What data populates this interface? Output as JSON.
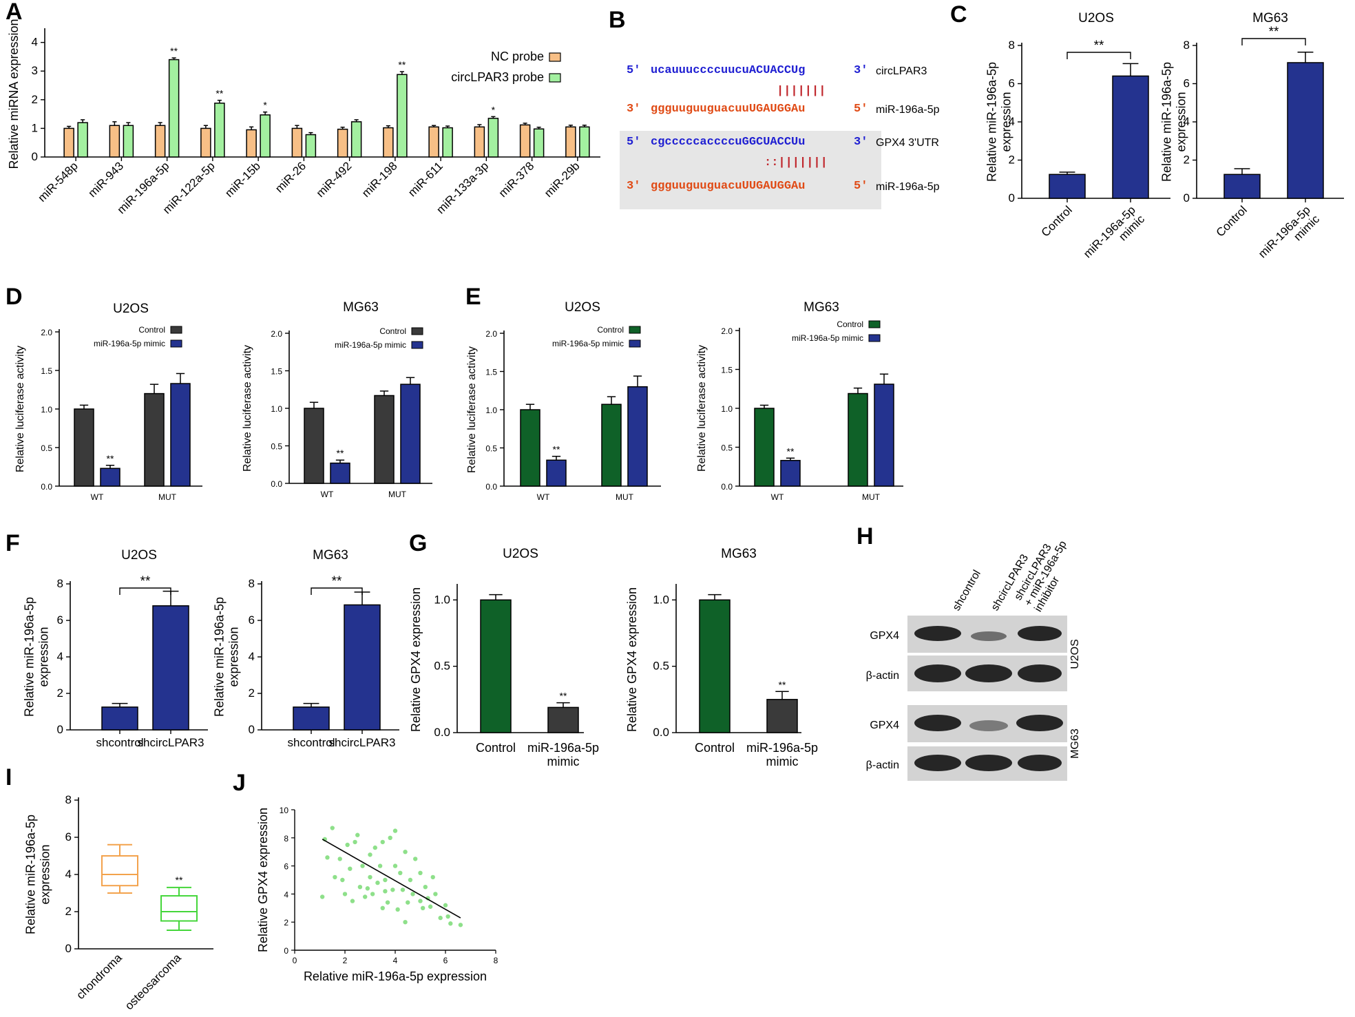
{
  "colors": {
    "orange": "#f7bf86",
    "green_light": "#a3f0a0",
    "dark_grey": "#3a3a3a",
    "navy": "#24338f",
    "dark_green": "#0f6128",
    "seq_blue": "#1f1fd2",
    "seq_red": "#e04b16",
    "pair_red": "#c0272d",
    "box_orange": "#f3a24c",
    "box_green": "#44d63a",
    "scatter_green": "#8ee08a"
  },
  "panels": {
    "A": {
      "label": "A",
      "ylabel": "Relative miRNA expression",
      "legend": [
        "NC probe",
        "circLPAR3 probe"
      ]
    },
    "B": {
      "label": "B",
      "rows": [
        {
          "p5": "5'",
          "seq": "ucauuuccccuucuACUACCUg",
          "p3": "3'",
          "name": "circLPAR3",
          "color": "blue"
        },
        {
          "p5": "3'",
          "seq": "ggguuguuguacuuUGAUGGAu",
          "p3": "5'",
          "name": "miR-196a-5p",
          "color": "red"
        },
        {
          "p5": "5'",
          "seq": "cgcccccaccccuGGCUACCUu",
          "p3": "3'",
          "name": "GPX4 3'UTR",
          "color": "blue"
        },
        {
          "p5": "3'",
          "seq": "ggguuguuguacuUUGAUGGAu",
          "p3": "5'",
          "name": "miR-196a-5p",
          "color": "red"
        }
      ],
      "pair_marks": [
        "|||||||",
        "::|||||||"
      ]
    },
    "C": {
      "label": "C",
      "ylabel": "Relative miR-196a-5p\nexpression",
      "sig": "**"
    },
    "D": {
      "label": "D",
      "ylabel": "Relative luciferase activity"
    },
    "E": {
      "label": "E",
      "ylabel": "Relative luciferase activity"
    },
    "F": {
      "label": "F",
      "ylabel": "Relative miR-196a-5p\nexpression",
      "sig": "**"
    },
    "G": {
      "label": "G",
      "ylabel": "Relative GPX4 expression"
    },
    "H": {
      "label": "H",
      "lanes": [
        "shcontrol",
        "shcircLPAR3",
        "shcircLPAR3\n+ miR-196a-5p\ninhibitor"
      ],
      "rows": [
        "GPX4",
        "β-actin",
        "GPX4",
        "β-actin"
      ],
      "cells": [
        "U2OS",
        "MG63"
      ]
    },
    "I": {
      "label": "I",
      "ylabel": "Relative miR-196a-5p\nexpression"
    },
    "J": {
      "label": "J",
      "xlabel": "Relative miR-196a-5p expression",
      "ylabel": "Relative GPX4 expression"
    }
  },
  "chart_data": [
    {
      "id": "A",
      "type": "bar",
      "categories": [
        "miR-548p",
        "miR-943",
        "miR-196a-5p",
        "miR-122a-5p",
        "miR-15b",
        "miR-26",
        "miR-492",
        "miR-198",
        "miR-611",
        "miR-133a-3p",
        "miR-378",
        "miR-29b"
      ],
      "series": [
        {
          "name": "NC probe",
          "values": [
            1.0,
            1.1,
            1.1,
            1.0,
            0.95,
            1.0,
            0.97,
            1.02,
            1.05,
            1.05,
            1.12,
            1.05
          ],
          "errors": [
            0.07,
            0.13,
            0.1,
            0.1,
            0.1,
            0.1,
            0.07,
            0.07,
            0.05,
            0.08,
            0.06,
            0.06
          ]
        },
        {
          "name": "circLPAR3 probe",
          "values": [
            1.2,
            1.1,
            3.4,
            1.88,
            1.47,
            0.78,
            1.23,
            2.88,
            1.02,
            1.35,
            0.98,
            1.05
          ],
          "errors": [
            0.1,
            0.1,
            0.06,
            0.1,
            0.1,
            0.07,
            0.07,
            0.1,
            0.06,
            0.06,
            0.06,
            0.06
          ]
        }
      ],
      "significance": [
        "",
        "",
        "**",
        "**",
        "*",
        "",
        "",
        "**",
        "",
        "*",
        "",
        ""
      ],
      "yticks": [
        0,
        1,
        2,
        3,
        4
      ],
      "ylim": [
        0,
        4.4
      ],
      "ylabel": "Relative miRNA expression"
    },
    {
      "id": "C1",
      "type": "bar",
      "title": "U2OS",
      "categories": [
        "Control",
        "miR-196a-5p\nmimic"
      ],
      "values": [
        1.25,
        6.4
      ],
      "errors": [
        0.12,
        0.65
      ],
      "yticks": [
        0,
        2,
        4,
        6,
        8
      ],
      "ylim": [
        0,
        8
      ]
    },
    {
      "id": "C2",
      "type": "bar",
      "title": "MG63",
      "categories": [
        "Control",
        "miR-196a-5p\nmimic"
      ],
      "values": [
        1.25,
        7.1
      ],
      "errors": [
        0.3,
        0.55
      ],
      "yticks": [
        0,
        2,
        4,
        6,
        8
      ],
      "ylim": [
        0,
        8
      ]
    },
    {
      "id": "D1",
      "type": "bar",
      "title": "U2OS",
      "categories": [
        "WT",
        "MUT"
      ],
      "series": [
        {
          "name": "Control",
          "values": [
            1.0,
            1.2
          ],
          "errors": [
            0.05,
            0.12
          ]
        },
        {
          "name": "miR-196a-5p mimic",
          "values": [
            0.23,
            1.33
          ],
          "errors": [
            0.04,
            0.13
          ]
        }
      ],
      "significance": [
        "**",
        ""
      ],
      "yticks": [
        0.0,
        0.5,
        1.0,
        1.5,
        2.0
      ],
      "ylim": [
        0,
        2.0
      ]
    },
    {
      "id": "D2",
      "type": "bar",
      "title": "MG63",
      "categories": [
        "WT",
        "MUT"
      ],
      "series": [
        {
          "name": "Control",
          "values": [
            1.0,
            1.17
          ],
          "errors": [
            0.08,
            0.06
          ]
        },
        {
          "name": "miR-196a-5p mimic",
          "values": [
            0.27,
            1.32
          ],
          "errors": [
            0.04,
            0.09
          ]
        }
      ],
      "significance": [
        "**",
        ""
      ],
      "yticks": [
        0.0,
        0.5,
        1.0,
        1.5,
        2.0
      ],
      "ylim": [
        0,
        2.0
      ]
    },
    {
      "id": "E1",
      "type": "bar",
      "title": "U2OS",
      "categories": [
        "WT",
        "MUT"
      ],
      "series": [
        {
          "name": "Control",
          "values": [
            1.0,
            1.07
          ],
          "errors": [
            0.07,
            0.1
          ]
        },
        {
          "name": "miR-196a-5p mimic",
          "values": [
            0.34,
            1.3
          ],
          "errors": [
            0.05,
            0.14
          ]
        }
      ],
      "significance": [
        "**",
        ""
      ],
      "yticks": [
        0.0,
        0.5,
        1.0,
        1.5,
        2.0
      ],
      "ylim": [
        0,
        2.0
      ]
    },
    {
      "id": "E2",
      "type": "bar",
      "title": "MG63",
      "categories": [
        "WT",
        "MUT"
      ],
      "series": [
        {
          "name": "Control",
          "values": [
            1.0,
            1.19
          ],
          "errors": [
            0.04,
            0.07
          ]
        },
        {
          "name": "miR-196a-5p mimic",
          "values": [
            0.33,
            1.31
          ],
          "errors": [
            0.03,
            0.13
          ]
        }
      ],
      "significance": [
        "**",
        ""
      ],
      "yticks": [
        0.0,
        0.5,
        1.0,
        1.5,
        2.0
      ],
      "ylim": [
        0,
        2.0
      ]
    },
    {
      "id": "F1",
      "type": "bar",
      "title": "U2OS",
      "categories": [
        "shcontrol",
        "shcircLPAR3"
      ],
      "values": [
        1.25,
        6.8
      ],
      "errors": [
        0.2,
        0.8
      ],
      "yticks": [
        0,
        2,
        4,
        6,
        8
      ],
      "ylim": [
        0,
        8
      ]
    },
    {
      "id": "F2",
      "type": "bar",
      "title": "MG63",
      "categories": [
        "shcontrol",
        "shcircLPAR3"
      ],
      "values": [
        1.25,
        6.85
      ],
      "errors": [
        0.2,
        0.7
      ],
      "yticks": [
        0,
        2,
        4,
        6,
        8
      ],
      "ylim": [
        0,
        8
      ]
    },
    {
      "id": "G1",
      "type": "bar",
      "title": "U2OS",
      "categories": [
        "Control",
        "miR-196a-5p\nmimic"
      ],
      "values": [
        1.0,
        0.19
      ],
      "errors": [
        0.04,
        0.035
      ],
      "significance": [
        "",
        "**"
      ],
      "yticks": [
        0.0,
        0.5,
        1.0
      ],
      "ylim": [
        0,
        1.1
      ]
    },
    {
      "id": "G2",
      "type": "bar",
      "title": "MG63",
      "categories": [
        "Control",
        "miR-196a-5p\nmimic"
      ],
      "values": [
        1.0,
        0.25
      ],
      "errors": [
        0.04,
        0.06
      ],
      "significance": [
        "",
        "**"
      ],
      "yticks": [
        0.0,
        0.5,
        1.0
      ],
      "ylim": [
        0,
        1.1
      ]
    },
    {
      "id": "I",
      "type": "box",
      "categories": [
        "chondroma",
        "osteosarcoma"
      ],
      "boxes": [
        {
          "min": 3.0,
          "q1": 3.4,
          "median": 4.0,
          "q3": 5.0,
          "max": 5.6
        },
        {
          "min": 1.0,
          "q1": 1.5,
          "median": 2.0,
          "q3": 2.85,
          "max": 3.3
        }
      ],
      "significance": [
        "",
        "**"
      ],
      "yticks": [
        0,
        2,
        4,
        6,
        8
      ],
      "ylim": [
        0,
        8
      ]
    },
    {
      "id": "J",
      "type": "scatter",
      "x": [
        1.1,
        1.2,
        1.5,
        1.6,
        1.8,
        2.0,
        2.1,
        2.2,
        2.3,
        2.5,
        2.6,
        2.7,
        2.8,
        3.0,
        3.0,
        3.1,
        3.2,
        3.3,
        3.4,
        3.5,
        3.5,
        3.6,
        3.7,
        3.8,
        3.9,
        4.0,
        4.0,
        4.1,
        4.2,
        4.3,
        4.4,
        4.5,
        4.6,
        4.7,
        4.8,
        5.0,
        5.0,
        5.1,
        5.2,
        5.3,
        5.5,
        5.6,
        5.8,
        6.0,
        6.1,
        6.6,
        1.3,
        1.9,
        2.4,
        2.9,
        3.6,
        4.4,
        5.4,
        6.2
      ],
      "y": [
        3.8,
        7.9,
        8.7,
        5.2,
        6.5,
        4.0,
        7.5,
        5.8,
        3.5,
        8.2,
        4.5,
        6.0,
        3.8,
        6.8,
        5.2,
        4.0,
        7.3,
        4.8,
        6.0,
        3.0,
        7.7,
        5.0,
        3.4,
        8.0,
        4.3,
        8.5,
        6.0,
        2.9,
        5.5,
        4.3,
        7.0,
        3.4,
        5.0,
        4.0,
        6.5,
        3.5,
        5.5,
        3.0,
        4.5,
        3.7,
        5.2,
        4.0,
        2.3,
        3.2,
        2.4,
        1.8,
        6.6,
        5.0,
        7.7,
        4.4,
        4.2,
        2.0,
        3.1,
        1.9
      ],
      "trend": {
        "x": [
          1.1,
          6.6
        ],
        "y": [
          7.9,
          2.3
        ]
      },
      "xticks": [
        0,
        2,
        4,
        6,
        8
      ],
      "yticks": [
        0,
        2,
        4,
        6,
        8,
        10
      ],
      "xlim": [
        0,
        8
      ],
      "ylim": [
        0,
        10
      ]
    }
  ]
}
